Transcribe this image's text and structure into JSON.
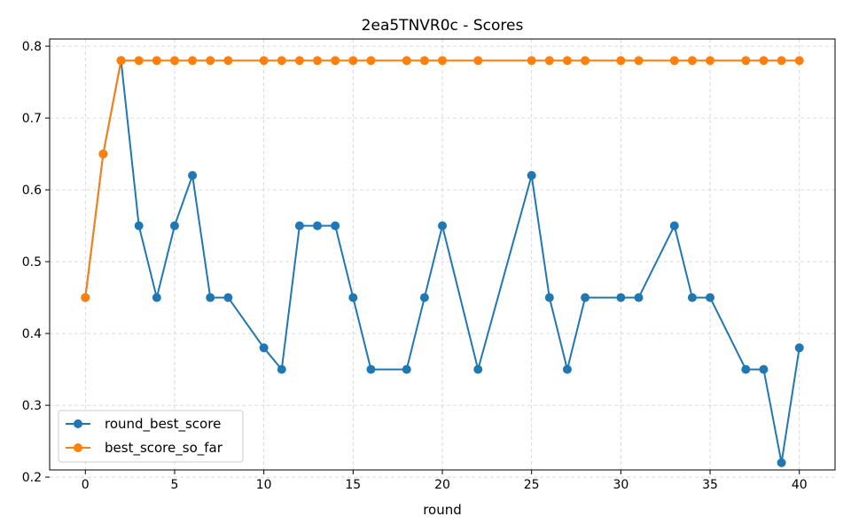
{
  "chart_data": {
    "type": "line",
    "title": "2ea5TNVR0c - Scores",
    "xlabel": "round",
    "ylabel": "",
    "xlim": [
      -2,
      42
    ],
    "ylim": [
      0.21,
      0.81
    ],
    "xticks": [
      0,
      5,
      10,
      15,
      20,
      25,
      30,
      35,
      40
    ],
    "yticks": [
      0.2,
      0.3,
      0.4,
      0.5,
      0.6,
      0.7,
      0.8
    ],
    "grid": true,
    "legend_position": "lower-left",
    "x": [
      0,
      1,
      2,
      3,
      4,
      5,
      6,
      7,
      8,
      10,
      11,
      12,
      13,
      14,
      15,
      16,
      18,
      19,
      20,
      22,
      25,
      26,
      27,
      28,
      30,
      31,
      33,
      34,
      35,
      37,
      38,
      39,
      40
    ],
    "series": [
      {
        "name": "round_best_score",
        "color": "#1f77b4",
        "values": [
          0.45,
          0.65,
          0.78,
          0.55,
          0.45,
          0.55,
          0.62,
          0.45,
          0.45,
          0.38,
          0.35,
          0.55,
          0.55,
          0.55,
          0.45,
          0.35,
          0.35,
          0.45,
          0.55,
          0.35,
          0.62,
          0.45,
          0.35,
          0.45,
          0.45,
          0.45,
          0.55,
          0.45,
          0.45,
          0.35,
          0.35,
          0.22,
          0.38
        ]
      },
      {
        "name": "best_score_so_far",
        "color": "#ff7f0e",
        "values": [
          0.45,
          0.65,
          0.78,
          0.78,
          0.78,
          0.78,
          0.78,
          0.78,
          0.78,
          0.78,
          0.78,
          0.78,
          0.78,
          0.78,
          0.78,
          0.78,
          0.78,
          0.78,
          0.78,
          0.78,
          0.78,
          0.78,
          0.78,
          0.78,
          0.78,
          0.78,
          0.78,
          0.78,
          0.78,
          0.78,
          0.78,
          0.78,
          0.78
        ]
      }
    ]
  }
}
